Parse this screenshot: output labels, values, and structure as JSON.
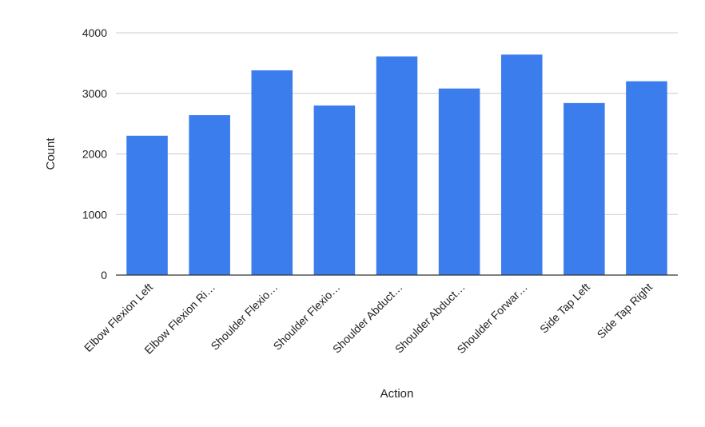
{
  "chart_data": {
    "type": "bar",
    "title": "",
    "xlabel": "Action",
    "ylabel": "Count",
    "categories": [
      "Elbow Flexion Left",
      "Elbow Flexion Ri…",
      "Shoulder Flexio…",
      "Shoulder Flexio…",
      "Shoulder Abduct…",
      "Shoulder Abduct…",
      "Shoulder Forwar…",
      "Side Tap Left",
      "Side Tap Right"
    ],
    "values": [
      2300,
      2640,
      3380,
      2800,
      3610,
      3080,
      3640,
      2840,
      3200
    ],
    "ylim": [
      0,
      4000
    ],
    "yticks": [
      0,
      1000,
      2000,
      3000,
      4000
    ],
    "grid": true,
    "legend": "none",
    "colors": {
      "bar": "#3b7ded",
      "grid": "#cccccc",
      "baseline": "#333333",
      "text": "#222222"
    }
  }
}
